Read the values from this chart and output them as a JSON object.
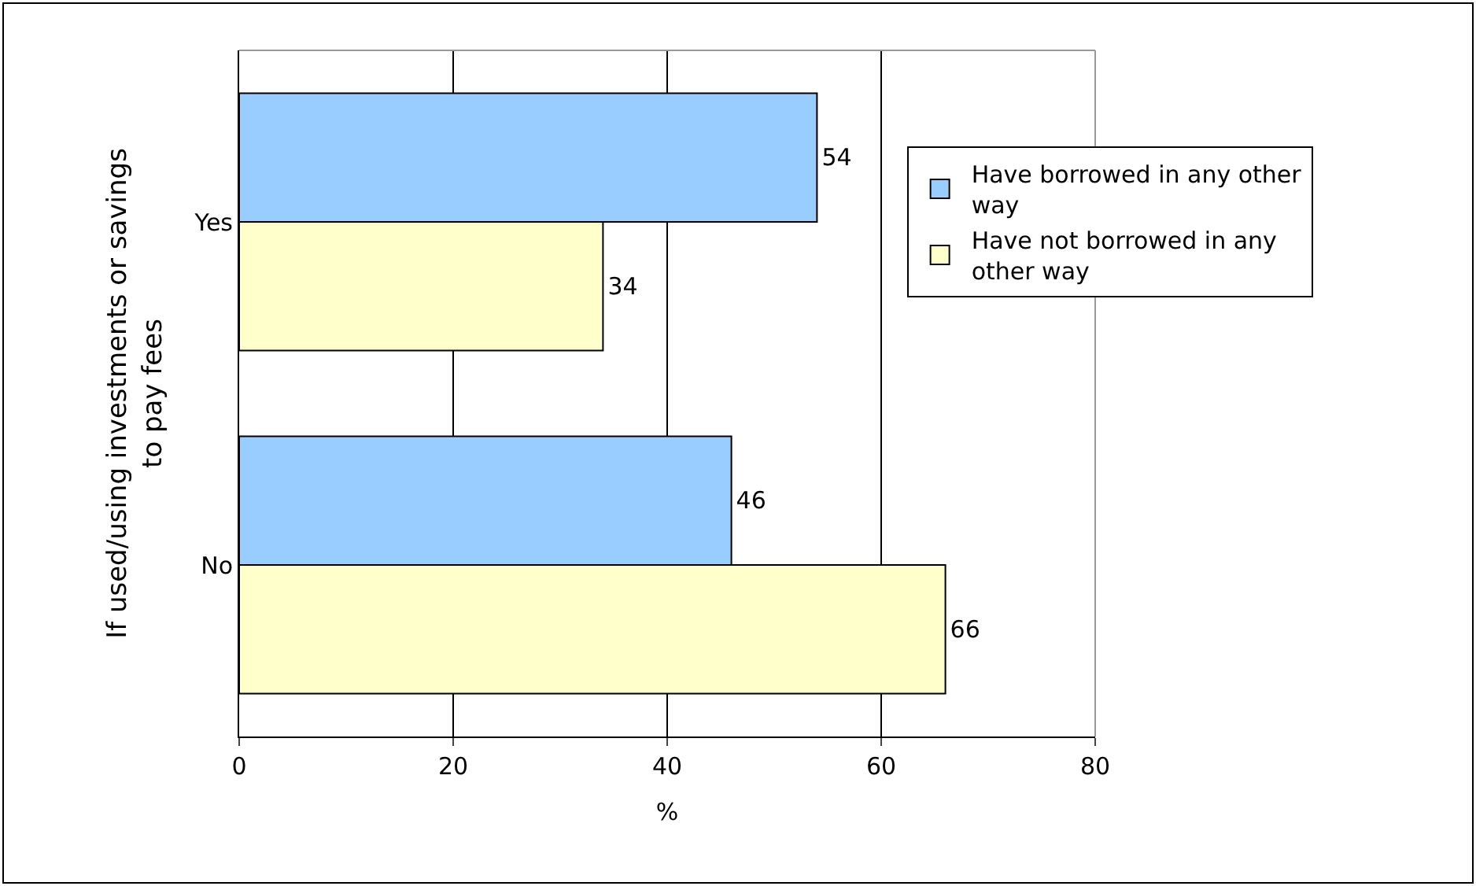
{
  "chart_data": {
    "type": "bar",
    "orientation": "horizontal",
    "ylabel": "If used/using investments or savings\nto pay fees",
    "xlabel": "%",
    "categories": [
      "Yes",
      "No"
    ],
    "series": [
      {
        "name": "Have borrowed in any other\nway",
        "color": "#99ccff",
        "values": [
          54,
          46
        ]
      },
      {
        "name": "Have not borrowed in any\nother way",
        "color": "#ffffcc",
        "values": [
          34,
          66
        ]
      }
    ],
    "xlim": [
      0,
      80
    ],
    "xticks": [
      0,
      20,
      40,
      60,
      80
    ],
    "grid": "x",
    "legend": "right",
    "data_labels": true
  }
}
